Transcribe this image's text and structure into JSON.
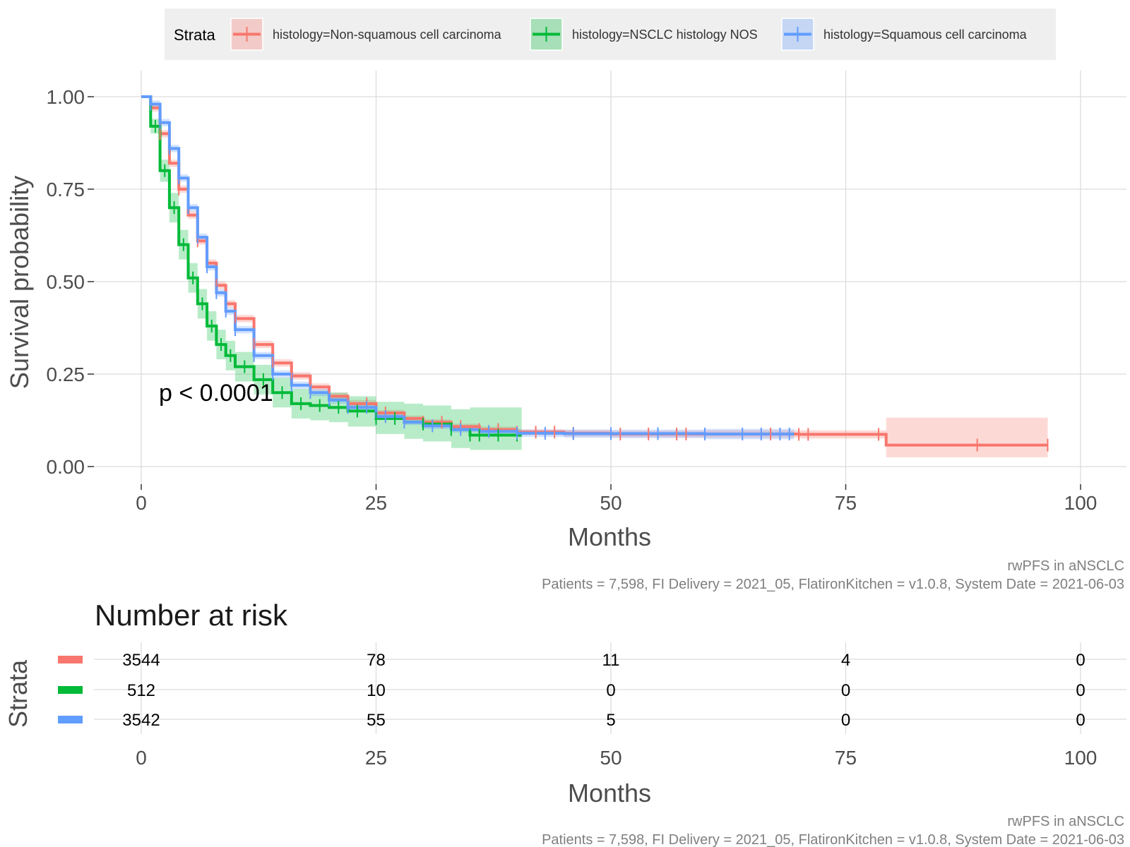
{
  "chart_data": [
    {
      "type": "line",
      "subtype": "kaplan-meier",
      "xlabel": "Months",
      "ylabel": "Survival probability",
      "xlim": [
        0,
        100
      ],
      "ylim": [
        0,
        1
      ],
      "x_ticks": [
        "0",
        "25",
        "50",
        "75",
        "100"
      ],
      "y_ticks": [
        "0.00",
        "0.25",
        "0.50",
        "0.75",
        "1.00"
      ],
      "grid": true,
      "legend": {
        "title": "Strata",
        "position": "top",
        "entries": [
          "histology=Non-squamous cell carcinoma",
          "histology=NSCLC histology NOS",
          "histology=Squamous cell carcinoma"
        ]
      },
      "annotation": "p < 0.0001",
      "caption_lines": [
        "rwPFS in aNSCLC",
        "Patients = 7,598, FI Delivery = 2021_05, FlatironKitchen = v1.0.8, System Date = 2021-06-03"
      ],
      "series": [
        {
          "name": "histology=Non-squamous cell carcinoma",
          "color": "#F8766D",
          "x": [
            0,
            1,
            2,
            3,
            4,
            5,
            6,
            7,
            8,
            9,
            10,
            12,
            14,
            16,
            18,
            20,
            22,
            25,
            28,
            30,
            33,
            36,
            40,
            45,
            50,
            60,
            70,
            79.3,
            79.3,
            96.5
          ],
          "y": [
            1.0,
            0.97,
            0.9,
            0.82,
            0.75,
            0.68,
            0.61,
            0.55,
            0.49,
            0.44,
            0.4,
            0.33,
            0.28,
            0.245,
            0.215,
            0.19,
            0.17,
            0.145,
            0.13,
            0.12,
            0.108,
            0.1,
            0.093,
            0.09,
            0.088,
            0.088,
            0.087,
            0.085,
            0.058,
            0.058
          ],
          "ci_lower": [
            1.0,
            0.96,
            0.89,
            0.81,
            0.74,
            0.67,
            0.6,
            0.54,
            0.48,
            0.43,
            0.39,
            0.32,
            0.27,
            0.235,
            0.205,
            0.18,
            0.16,
            0.137,
            0.122,
            0.112,
            0.1,
            0.092,
            0.085,
            0.081,
            0.079,
            0.078,
            0.076,
            0.072,
            0.025,
            0.025
          ],
          "ci_upper": [
            1.0,
            0.98,
            0.91,
            0.83,
            0.76,
            0.69,
            0.62,
            0.56,
            0.5,
            0.45,
            0.41,
            0.34,
            0.29,
            0.255,
            0.225,
            0.2,
            0.18,
            0.153,
            0.138,
            0.128,
            0.116,
            0.108,
            0.101,
            0.099,
            0.097,
            0.098,
            0.098,
            0.1,
            0.132,
            0.132
          ],
          "censor_x": [
            2,
            4,
            6,
            8,
            10,
            12,
            14,
            16,
            18,
            20,
            22,
            24,
            26,
            28,
            30,
            32,
            34,
            36,
            38,
            40,
            42,
            44,
            46,
            51,
            54,
            57,
            58,
            67,
            70,
            71,
            78.5,
            89,
            96.5
          ]
        },
        {
          "name": "histology=NSCLC histology NOS",
          "color": "#00BA38",
          "x": [
            0,
            1,
            2,
            3,
            4,
            5,
            6,
            7,
            8,
            9,
            10,
            12,
            14,
            16,
            18,
            20,
            22,
            25,
            28,
            30,
            33,
            35,
            40.5
          ],
          "y": [
            1.0,
            0.92,
            0.8,
            0.7,
            0.6,
            0.51,
            0.44,
            0.38,
            0.33,
            0.3,
            0.27,
            0.235,
            0.2,
            0.17,
            0.165,
            0.16,
            0.15,
            0.13,
            0.12,
            0.115,
            0.1,
            0.085,
            0.085
          ],
          "ci_lower": [
            1.0,
            0.9,
            0.77,
            0.66,
            0.56,
            0.47,
            0.4,
            0.34,
            0.29,
            0.26,
            0.23,
            0.195,
            0.16,
            0.13,
            0.125,
            0.12,
            0.108,
            0.088,
            0.075,
            0.068,
            0.05,
            0.045,
            0.045
          ],
          "ci_upper": [
            1.0,
            0.94,
            0.83,
            0.74,
            0.64,
            0.55,
            0.48,
            0.42,
            0.37,
            0.34,
            0.31,
            0.275,
            0.24,
            0.21,
            0.205,
            0.2,
            0.19,
            0.175,
            0.17,
            0.165,
            0.155,
            0.16,
            0.16
          ],
          "censor_x": [
            1.5,
            2.5,
            3.5,
            4.5,
            5.5,
            6.5,
            7.5,
            8.5,
            9.5,
            11,
            13,
            15,
            17,
            19,
            21,
            23,
            25,
            27,
            30,
            33,
            35,
            36,
            38,
            40
          ]
        },
        {
          "name": "histology=Squamous cell carcinoma",
          "color": "#619CFF",
          "x": [
            0,
            1,
            2,
            3,
            4,
            5,
            6,
            7,
            8,
            9,
            10,
            12,
            14,
            16,
            18,
            20,
            22,
            25,
            28,
            30,
            33,
            36,
            40,
            45,
            50,
            60,
            69.5
          ],
          "y": [
            1.0,
            0.98,
            0.93,
            0.86,
            0.78,
            0.7,
            0.62,
            0.54,
            0.47,
            0.42,
            0.37,
            0.3,
            0.25,
            0.22,
            0.2,
            0.18,
            0.16,
            0.135,
            0.12,
            0.11,
            0.1,
            0.095,
            0.09,
            0.089,
            0.089,
            0.088,
            0.088
          ],
          "ci_lower": [
            1.0,
            0.97,
            0.92,
            0.85,
            0.77,
            0.69,
            0.61,
            0.53,
            0.46,
            0.41,
            0.36,
            0.29,
            0.24,
            0.21,
            0.19,
            0.17,
            0.15,
            0.127,
            0.112,
            0.102,
            0.092,
            0.086,
            0.08,
            0.078,
            0.077,
            0.074,
            0.068
          ],
          "ci_upper": [
            1.0,
            0.99,
            0.94,
            0.87,
            0.79,
            0.71,
            0.63,
            0.55,
            0.48,
            0.43,
            0.38,
            0.31,
            0.26,
            0.23,
            0.21,
            0.19,
            0.17,
            0.143,
            0.128,
            0.118,
            0.108,
            0.104,
            0.1,
            0.1,
            0.1,
            0.102,
            0.112
          ],
          "censor_x": [
            1,
            2,
            3,
            4,
            5,
            6,
            7,
            8,
            9,
            10,
            12,
            14,
            16,
            18,
            20,
            22,
            24,
            26,
            28,
            31,
            34,
            37,
            40,
            43,
            46,
            50,
            55,
            60,
            64,
            66,
            68,
            69
          ]
        }
      ]
    },
    {
      "type": "table",
      "title": "Number at risk",
      "ylabel": "Strata",
      "xlabel": "Months",
      "xlim": [
        0,
        100
      ],
      "x_ticks": [
        "0",
        "25",
        "50",
        "75",
        "100"
      ],
      "times": [
        0,
        25,
        50,
        75,
        100
      ],
      "rows": [
        {
          "color": "#F8766D",
          "values": [
            "3544",
            "78",
            "11",
            "4",
            "0"
          ]
        },
        {
          "color": "#00BA38",
          "values": [
            "512",
            "10",
            "0",
            "0",
            "0"
          ]
        },
        {
          "color": "#619CFF",
          "values": [
            "3542",
            "55",
            "5",
            "0",
            "0"
          ]
        }
      ],
      "caption_lines": [
        "rwPFS in aNSCLC",
        "Patients = 7,598, FI Delivery = 2021_05, FlatironKitchen = v1.0.8, System Date = 2021-06-03"
      ]
    }
  ]
}
